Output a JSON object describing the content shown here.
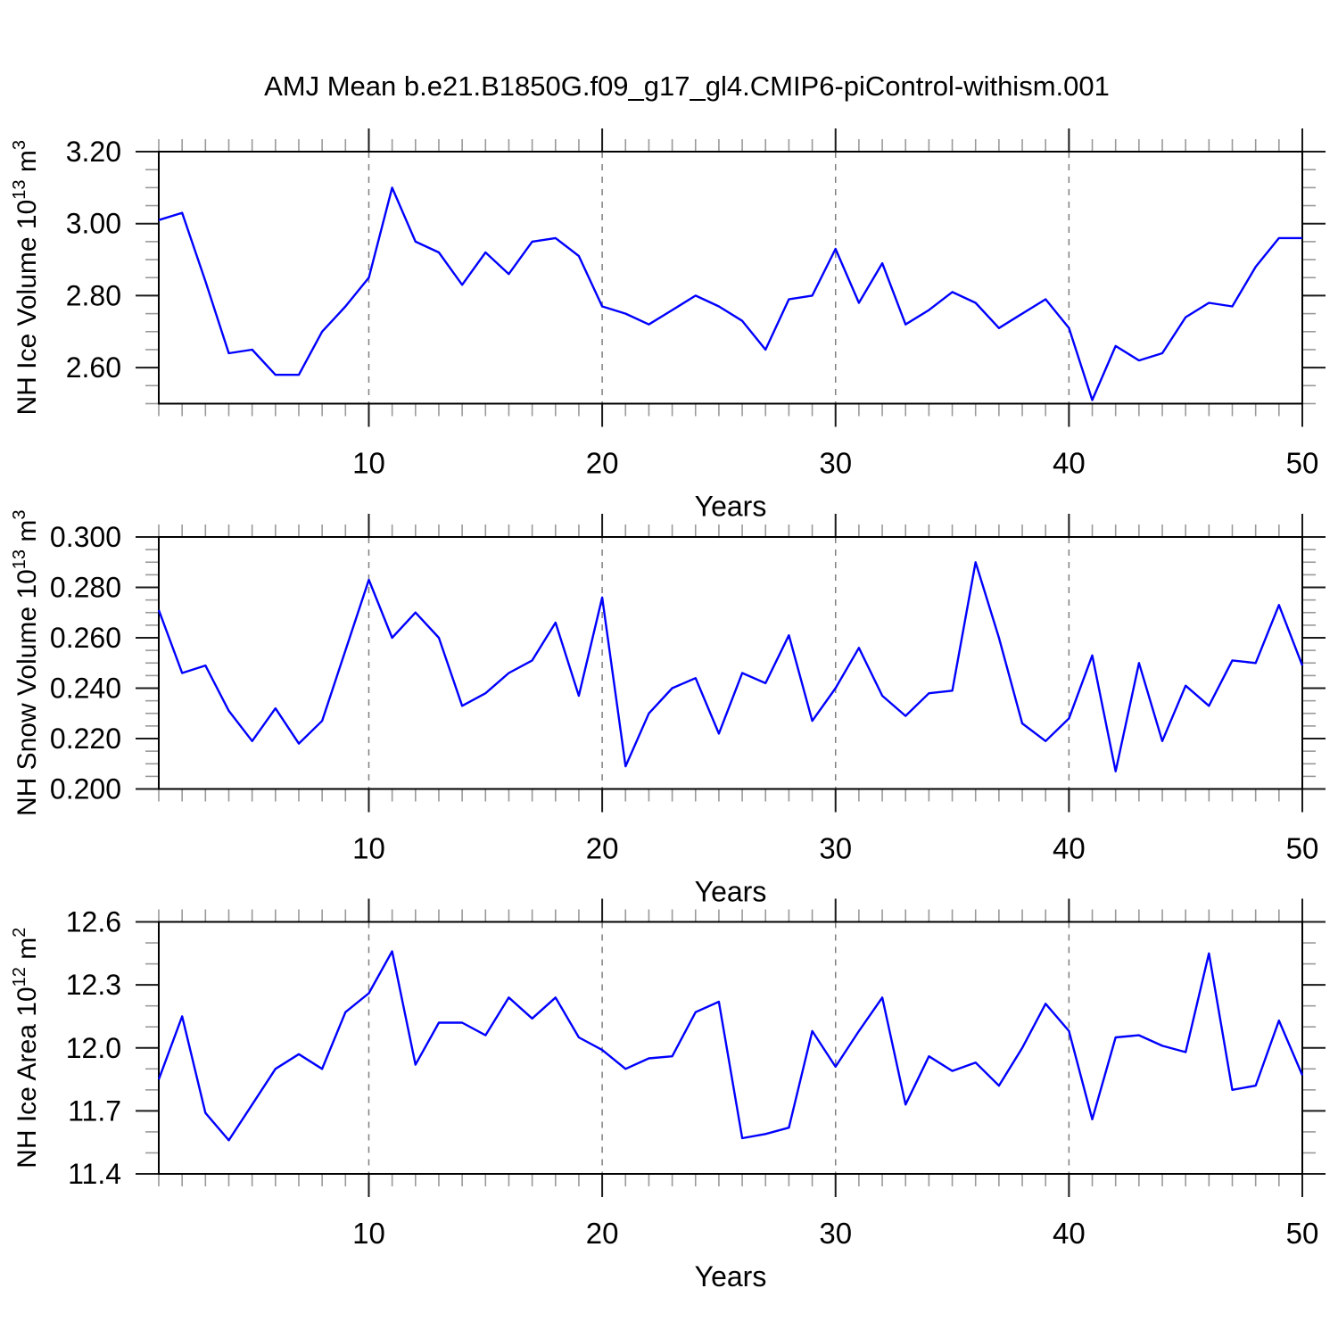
{
  "title": "AMJ Mean b.e21.B1850G.f09_g17_gl4.CMIP6-piControl-withism.001",
  "styles": {
    "line_color": "#0000ff",
    "grid_color": "#808080",
    "frame_color": "#000000",
    "major_tick_color": "#1a1a1a",
    "minor_tick_color": "#999999"
  },
  "chart_data": [
    {
      "type": "line",
      "name": "nh-ice-volume",
      "ylabel": "NH Ice Volume 10^13 m^3",
      "ylabel_parts": [
        {
          "t": "NH Ice Volume 10"
        },
        {
          "sup": "13"
        },
        {
          "t": " m"
        },
        {
          "sup": "3"
        }
      ],
      "xlabel": "Years",
      "xlim": [
        1,
        50
      ],
      "ylim": [
        2.5,
        3.2
      ],
      "x_major_ticks": [
        10,
        20,
        30,
        40,
        50
      ],
      "x_minor_step": 1,
      "grid_x": [
        10,
        20,
        30,
        40
      ],
      "y_major_ticks": [
        {
          "value": 3.2,
          "label": "3.20"
        },
        {
          "value": 3.0,
          "label": "3.00"
        },
        {
          "value": 2.8,
          "label": "2.80"
        },
        {
          "value": 2.6,
          "label": "2.60"
        }
      ],
      "y_minor_step": 0.05,
      "grid": "x-dashed-decades",
      "legend": "none",
      "x": [
        1,
        2,
        3,
        4,
        5,
        6,
        7,
        8,
        9,
        10,
        11,
        12,
        13,
        14,
        15,
        16,
        17,
        18,
        19,
        20,
        21,
        22,
        23,
        24,
        25,
        26,
        27,
        28,
        29,
        30,
        31,
        32,
        33,
        34,
        35,
        36,
        37,
        38,
        39,
        40,
        41,
        42,
        43,
        44,
        45,
        46,
        47,
        48,
        49,
        50
      ],
      "values": [
        3.01,
        3.03,
        2.84,
        2.64,
        2.65,
        2.58,
        2.58,
        2.7,
        2.77,
        2.85,
        3.1,
        2.95,
        2.92,
        2.83,
        2.92,
        2.86,
        2.95,
        2.96,
        2.91,
        2.77,
        2.75,
        2.72,
        2.76,
        2.8,
        2.77,
        2.73,
        2.65,
        2.79,
        2.8,
        2.93,
        2.78,
        2.89,
        2.72,
        2.76,
        2.81,
        2.78,
        2.71,
        2.75,
        2.79,
        2.71,
        2.51,
        2.66,
        2.62,
        2.64,
        2.74,
        2.78,
        2.77,
        2.88,
        2.96,
        2.96
      ]
    },
    {
      "type": "line",
      "name": "nh-snow-volume",
      "ylabel": "NH Snow Volume 10^13 m^3",
      "ylabel_parts": [
        {
          "t": "NH Snow Volume 10"
        },
        {
          "sup": "13"
        },
        {
          "t": " m"
        },
        {
          "sup": "3"
        }
      ],
      "xlabel": "Years",
      "xlim": [
        1,
        50
      ],
      "ylim": [
        0.2,
        0.3
      ],
      "x_major_ticks": [
        10,
        20,
        30,
        40,
        50
      ],
      "x_minor_step": 1,
      "grid_x": [
        10,
        20,
        30,
        40
      ],
      "y_major_ticks": [
        {
          "value": 0.3,
          "label": "0.300"
        },
        {
          "value": 0.28,
          "label": "0.280"
        },
        {
          "value": 0.26,
          "label": "0.260"
        },
        {
          "value": 0.24,
          "label": "0.240"
        },
        {
          "value": 0.22,
          "label": "0.220"
        },
        {
          "value": 0.2,
          "label": "0.200"
        }
      ],
      "y_minor_step": 0.005,
      "grid": "x-dashed-decades",
      "legend": "none",
      "x": [
        1,
        2,
        3,
        4,
        5,
        6,
        7,
        8,
        9,
        10,
        11,
        12,
        13,
        14,
        15,
        16,
        17,
        18,
        19,
        20,
        21,
        22,
        23,
        24,
        25,
        26,
        27,
        28,
        29,
        30,
        31,
        32,
        33,
        34,
        35,
        36,
        37,
        38,
        39,
        40,
        41,
        42,
        43,
        44,
        45,
        46,
        47,
        48,
        49,
        50
      ],
      "values": [
        0.271,
        0.246,
        0.249,
        0.231,
        0.219,
        0.232,
        0.218,
        0.227,
        0.255,
        0.283,
        0.26,
        0.27,
        0.26,
        0.233,
        0.238,
        0.246,
        0.251,
        0.266,
        0.237,
        0.276,
        0.209,
        0.23,
        0.24,
        0.244,
        0.222,
        0.246,
        0.242,
        0.261,
        0.227,
        0.24,
        0.256,
        0.237,
        0.229,
        0.238,
        0.239,
        0.29,
        0.26,
        0.226,
        0.219,
        0.228,
        0.253,
        0.207,
        0.25,
        0.219,
        0.241,
        0.233,
        0.251,
        0.25,
        0.273,
        0.249
      ]
    },
    {
      "type": "line",
      "name": "nh-ice-area",
      "ylabel": "NH Ice Area 10^12 m^2",
      "ylabel_parts": [
        {
          "t": "NH Ice Area 10"
        },
        {
          "sup": "12"
        },
        {
          "t": " m"
        },
        {
          "sup": "2"
        }
      ],
      "xlabel": "Years",
      "xlim": [
        1,
        50
      ],
      "ylim": [
        11.4,
        12.6
      ],
      "x_major_ticks": [
        10,
        20,
        30,
        40,
        50
      ],
      "x_minor_step": 1,
      "grid_x": [
        10,
        20,
        30,
        40
      ],
      "y_major_ticks": [
        {
          "value": 12.6,
          "label": "12.6"
        },
        {
          "value": 12.3,
          "label": "12.3"
        },
        {
          "value": 12.0,
          "label": "12.0"
        },
        {
          "value": 11.7,
          "label": "11.7"
        },
        {
          "value": 11.4,
          "label": "11.4"
        }
      ],
      "y_minor_step": 0.1,
      "grid": "x-dashed-decades",
      "legend": "none",
      "x": [
        1,
        2,
        3,
        4,
        5,
        6,
        7,
        8,
        9,
        10,
        11,
        12,
        13,
        14,
        15,
        16,
        17,
        18,
        19,
        20,
        21,
        22,
        23,
        24,
        25,
        26,
        27,
        28,
        29,
        30,
        31,
        32,
        33,
        34,
        35,
        36,
        37,
        38,
        39,
        40,
        41,
        42,
        43,
        44,
        45,
        46,
        47,
        48,
        49,
        50
      ],
      "values": [
        11.85,
        12.15,
        11.69,
        11.56,
        11.73,
        11.9,
        11.97,
        11.9,
        12.17,
        12.26,
        12.46,
        11.92,
        12.12,
        12.12,
        12.06,
        12.24,
        12.14,
        12.24,
        12.05,
        11.99,
        11.9,
        11.95,
        11.96,
        12.17,
        12.22,
        11.57,
        11.59,
        11.62,
        12.08,
        11.91,
        12.08,
        12.24,
        11.73,
        11.96,
        11.89,
        11.93,
        11.82,
        12.0,
        12.21,
        12.08,
        11.66,
        12.05,
        12.06,
        12.01,
        11.98,
        12.45,
        11.8,
        11.82,
        12.13,
        11.87
      ]
    }
  ]
}
